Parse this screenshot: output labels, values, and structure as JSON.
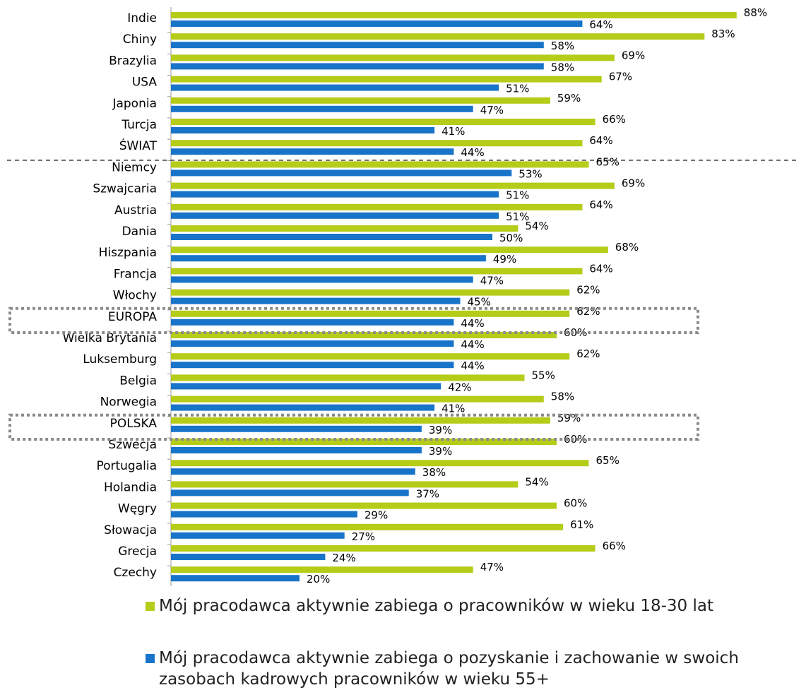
{
  "chart_data": {
    "type": "bar",
    "orientation": "horizontal",
    "categories": [
      "Indie",
      "Chiny",
      "Brazylia",
      "USA",
      "Japonia",
      "Turcja",
      "ŚWIAT",
      "Niemcy",
      "Szwajcaria",
      "Austria",
      "Dania",
      "Hiszpania",
      "Francja",
      "Włochy",
      "EUROPA",
      "Wielka Brytania",
      "Luksemburg",
      "Belgia",
      "Norwegia",
      "POLSKA",
      "Szwecja",
      "Portugalia",
      "Holandia",
      "Węgry",
      "Słowacja",
      "Grecja",
      "Czechy"
    ],
    "series": [
      {
        "name": "Mój pracodawca aktywnie zabiega o pracowników w wieku 18-30 lat",
        "color": "#b5cc18",
        "values": [
          88,
          83,
          69,
          67,
          59,
          66,
          64,
          65,
          69,
          64,
          54,
          68,
          64,
          62,
          62,
          60,
          62,
          55,
          58,
          59,
          60,
          65,
          54,
          60,
          61,
          66,
          47
        ],
        "labels": [
          "88%",
          "83%",
          "69%",
          "67%",
          "59%",
          "66%",
          "64%",
          "65%",
          "69%",
          "64%",
          "54%",
          "68%",
          "64%",
          "62%",
          "62%",
          "60%",
          "62%",
          "55%",
          "58%",
          "59%",
          "60%",
          "65%",
          "54%",
          "60%",
          "61%",
          "66%",
          "47%"
        ]
      },
      {
        "name": "Mój pracodawca aktywnie zabiega o pozyskanie i zachowanie w swoich zasobach kadrowych pracowników w wieku 55+",
        "color": "#1874c8",
        "values": [
          64,
          58,
          58,
          51,
          47,
          41,
          44,
          53,
          51,
          51,
          50,
          49,
          47,
          45,
          44,
          44,
          44,
          42,
          41,
          39,
          39,
          38,
          37,
          29,
          27,
          24,
          20
        ],
        "labels": [
          "64%",
          "58%",
          "58%",
          "51%",
          "47%",
          "41%",
          "44%",
          "53%",
          "51%",
          "51%",
          "50%",
          "49%",
          "47%",
          "45%",
          "44%",
          "44%",
          "44%",
          "42%",
          "41%",
          "39%",
          "39%",
          "38%",
          "37%",
          "29%",
          "27%",
          "24%",
          "20%"
        ]
      }
    ],
    "xlim": [
      0,
      100
    ],
    "separator_after": "ŚWIAT",
    "highlighted": [
      "EUROPA",
      "POLSKA"
    ],
    "legend_position": "bottom"
  },
  "legend": {
    "line1": "Mój pracodawca aktywnie zabiega o pracowników w wieku 18-30 lat",
    "line2": "Mój pracodawca aktywnie zabiega o pozyskanie i zachowanie w swoich zasobach kadrowych pracowników w wieku 55+"
  }
}
